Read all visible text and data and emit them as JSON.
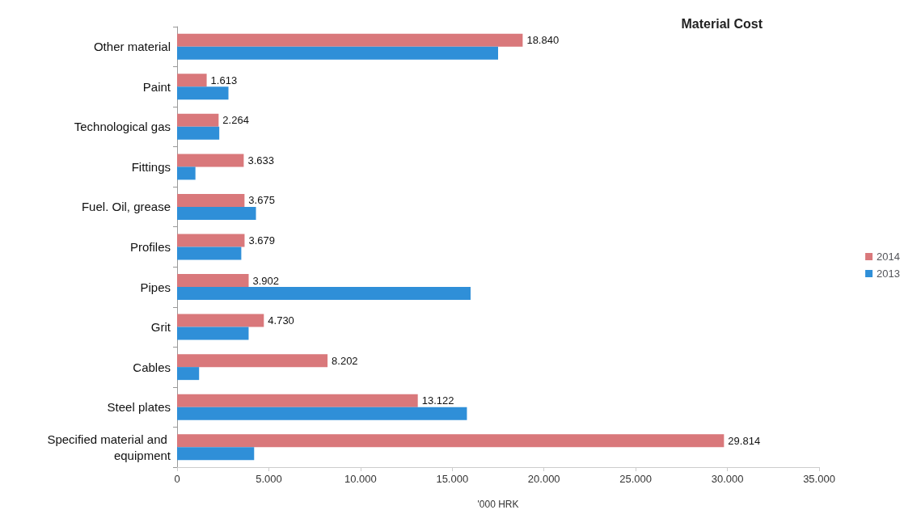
{
  "chart_data": {
    "type": "bar",
    "orientation": "horizontal",
    "title": "Material Cost",
    "xlabel": "'000 HRK",
    "categories": [
      "Other material",
      "Paint",
      "Technological gas",
      "Fittings",
      "Fuel. Oil, grease",
      "Profiles",
      "Pipes",
      "Grit",
      "Cables",
      "Steel plates",
      "Specified material and equipment"
    ],
    "series": [
      {
        "name": "2014",
        "color": "#d9787b",
        "values": [
          18840,
          1613,
          2264,
          3633,
          3675,
          3679,
          3902,
          4730,
          8202,
          13122,
          29814
        ],
        "value_labels": [
          "18.840",
          "1.613",
          "2.264",
          "3.633",
          "3.675",
          "3.679",
          "3.902",
          "4.730",
          "8.202",
          "13.122",
          "29.814"
        ]
      },
      {
        "name": "2013",
        "color": "#2f8fd8",
        "values": [
          17500,
          2800,
          2300,
          1000,
          4300,
          3500,
          16000,
          3900,
          1200,
          15800,
          4200
        ]
      }
    ],
    "xlim": [
      0,
      35000
    ],
    "xticks": [
      0,
      {
        "value": 5000,
        "label": "5.000"
      },
      {
        "value": 10000,
        "label": "10.000"
      },
      {
        "value": 15000,
        "label": "15.000"
      },
      {
        "value": 20000,
        "label": "20.000"
      },
      {
        "value": 25000,
        "label": "25.000"
      },
      {
        "value": 30000,
        "label": "30.000"
      },
      {
        "value": 35000,
        "label": "35.000"
      }
    ],
    "grid": false,
    "legend": "right"
  }
}
